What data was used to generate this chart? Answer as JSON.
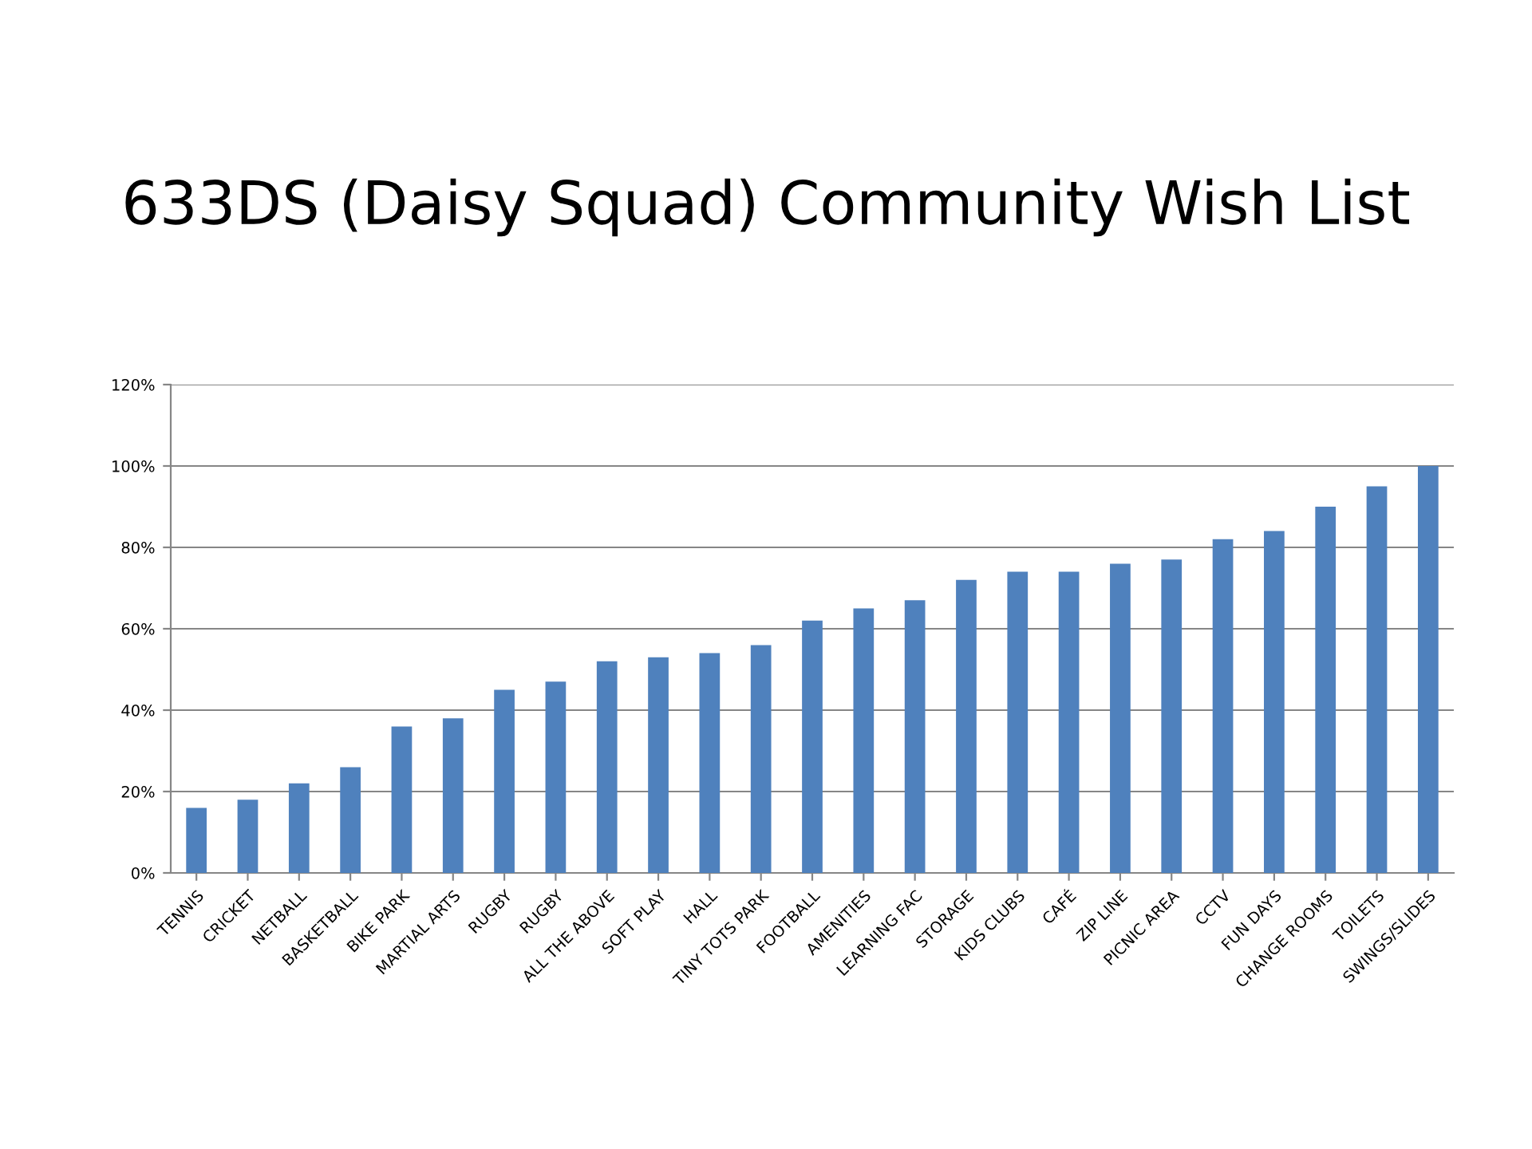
{
  "chart_data": {
    "type": "bar",
    "title": "633DS (Daisy Squad) Community Wish List",
    "categories": [
      "TENNIS",
      "CRICKET",
      "NETBALL",
      "BASKETBALL",
      "BIKE PARK",
      "MARTIAL ARTS",
      "RUGBY",
      "RUGBY",
      "ALL THE ABOVE",
      "SOFT PLAY",
      "HALL",
      "TINY TOTS PARK",
      "FOOTBALL",
      "AMENITIES",
      "LEARNING FAC",
      "STORAGE",
      "KIDS CLUBS",
      "CAFÉ",
      "ZIP LINE",
      "PICNIC AREA",
      "CCTV",
      "FUN DAYS",
      "CHANGE ROOMS",
      "TOILETS",
      "SWINGS/SLIDES"
    ],
    "values": [
      16,
      18,
      22,
      26,
      36,
      38,
      45,
      47,
      52,
      53,
      54,
      56,
      62,
      65,
      67,
      72,
      74,
      74,
      76,
      77,
      82,
      84,
      90,
      95,
      100
    ],
    "color": "#4f81bd",
    "ylim": [
      0,
      120
    ],
    "yticks": [
      {
        "value": 0,
        "label": "0%"
      },
      {
        "value": 20,
        "label": "20%"
      },
      {
        "value": 40,
        "label": "40%"
      },
      {
        "value": 60,
        "label": "60%"
      },
      {
        "value": 80,
        "label": "80%"
      },
      {
        "value": 100,
        "label": "100%"
      },
      {
        "value": 120,
        "label": "120%"
      }
    ],
    "grid": "y",
    "legend": false
  }
}
